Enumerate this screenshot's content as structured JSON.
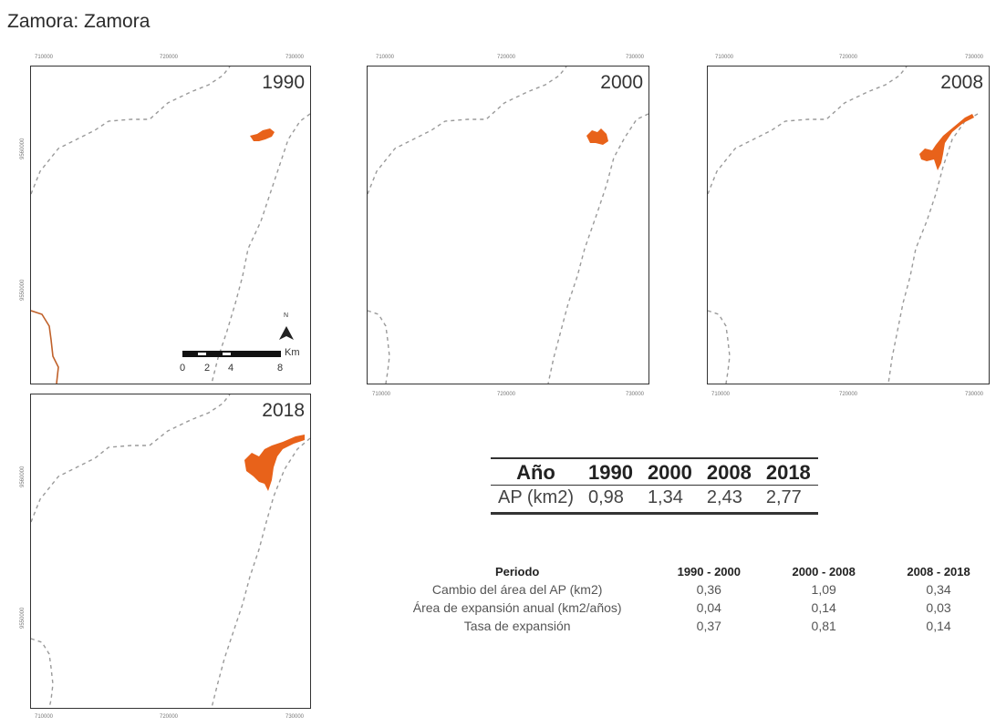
{
  "title": "Zamora: Zamora",
  "panels": [
    {
      "year": "1990",
      "xticks": [
        "710000",
        "720000",
        "730000"
      ],
      "yticks": [
        "9560000",
        "9550000"
      ],
      "xticks_pos": "top"
    },
    {
      "year": "2000",
      "xticks": [
        "710000",
        "720000",
        "730000"
      ],
      "xticks_top": [
        "710000",
        "720000",
        "730000"
      ]
    },
    {
      "year": "2008",
      "xticks": [
        "710000",
        "720000",
        "730000"
      ],
      "xticks_top": [
        "710000",
        "720000",
        "730000"
      ]
    },
    {
      "year": "2018",
      "xticks": [
        "710000",
        "720000",
        "730000"
      ],
      "yticks": [
        "9560000",
        "9550000"
      ]
    }
  ],
  "north_label": "N",
  "scale": {
    "unit": "Km",
    "labels": [
      "0",
      "2",
      "4",
      "8"
    ]
  },
  "area_table": {
    "header": [
      "Año",
      "1990",
      "2000",
      "2008",
      "2018"
    ],
    "row": [
      "AP (km2)",
      "0,98",
      "1,34",
      "2,43",
      "2,77"
    ]
  },
  "period_table": {
    "header": [
      "Periodo",
      "1990 - 2000",
      "2000 - 2008",
      "2008 - 2018"
    ],
    "rows": [
      [
        "Cambio del área del AP (km2)",
        "0,36",
        "1,09",
        "0,34"
      ],
      [
        "Área de expansión anual (km2/años)",
        "0,04",
        "0,14",
        "0,03"
      ],
      [
        "Tasa de expansión",
        "0,37",
        "0,81",
        "0,14"
      ]
    ]
  },
  "colors": {
    "urban": "#e8621a",
    "boundary": "#9a9a9a",
    "frame": "#333333"
  }
}
